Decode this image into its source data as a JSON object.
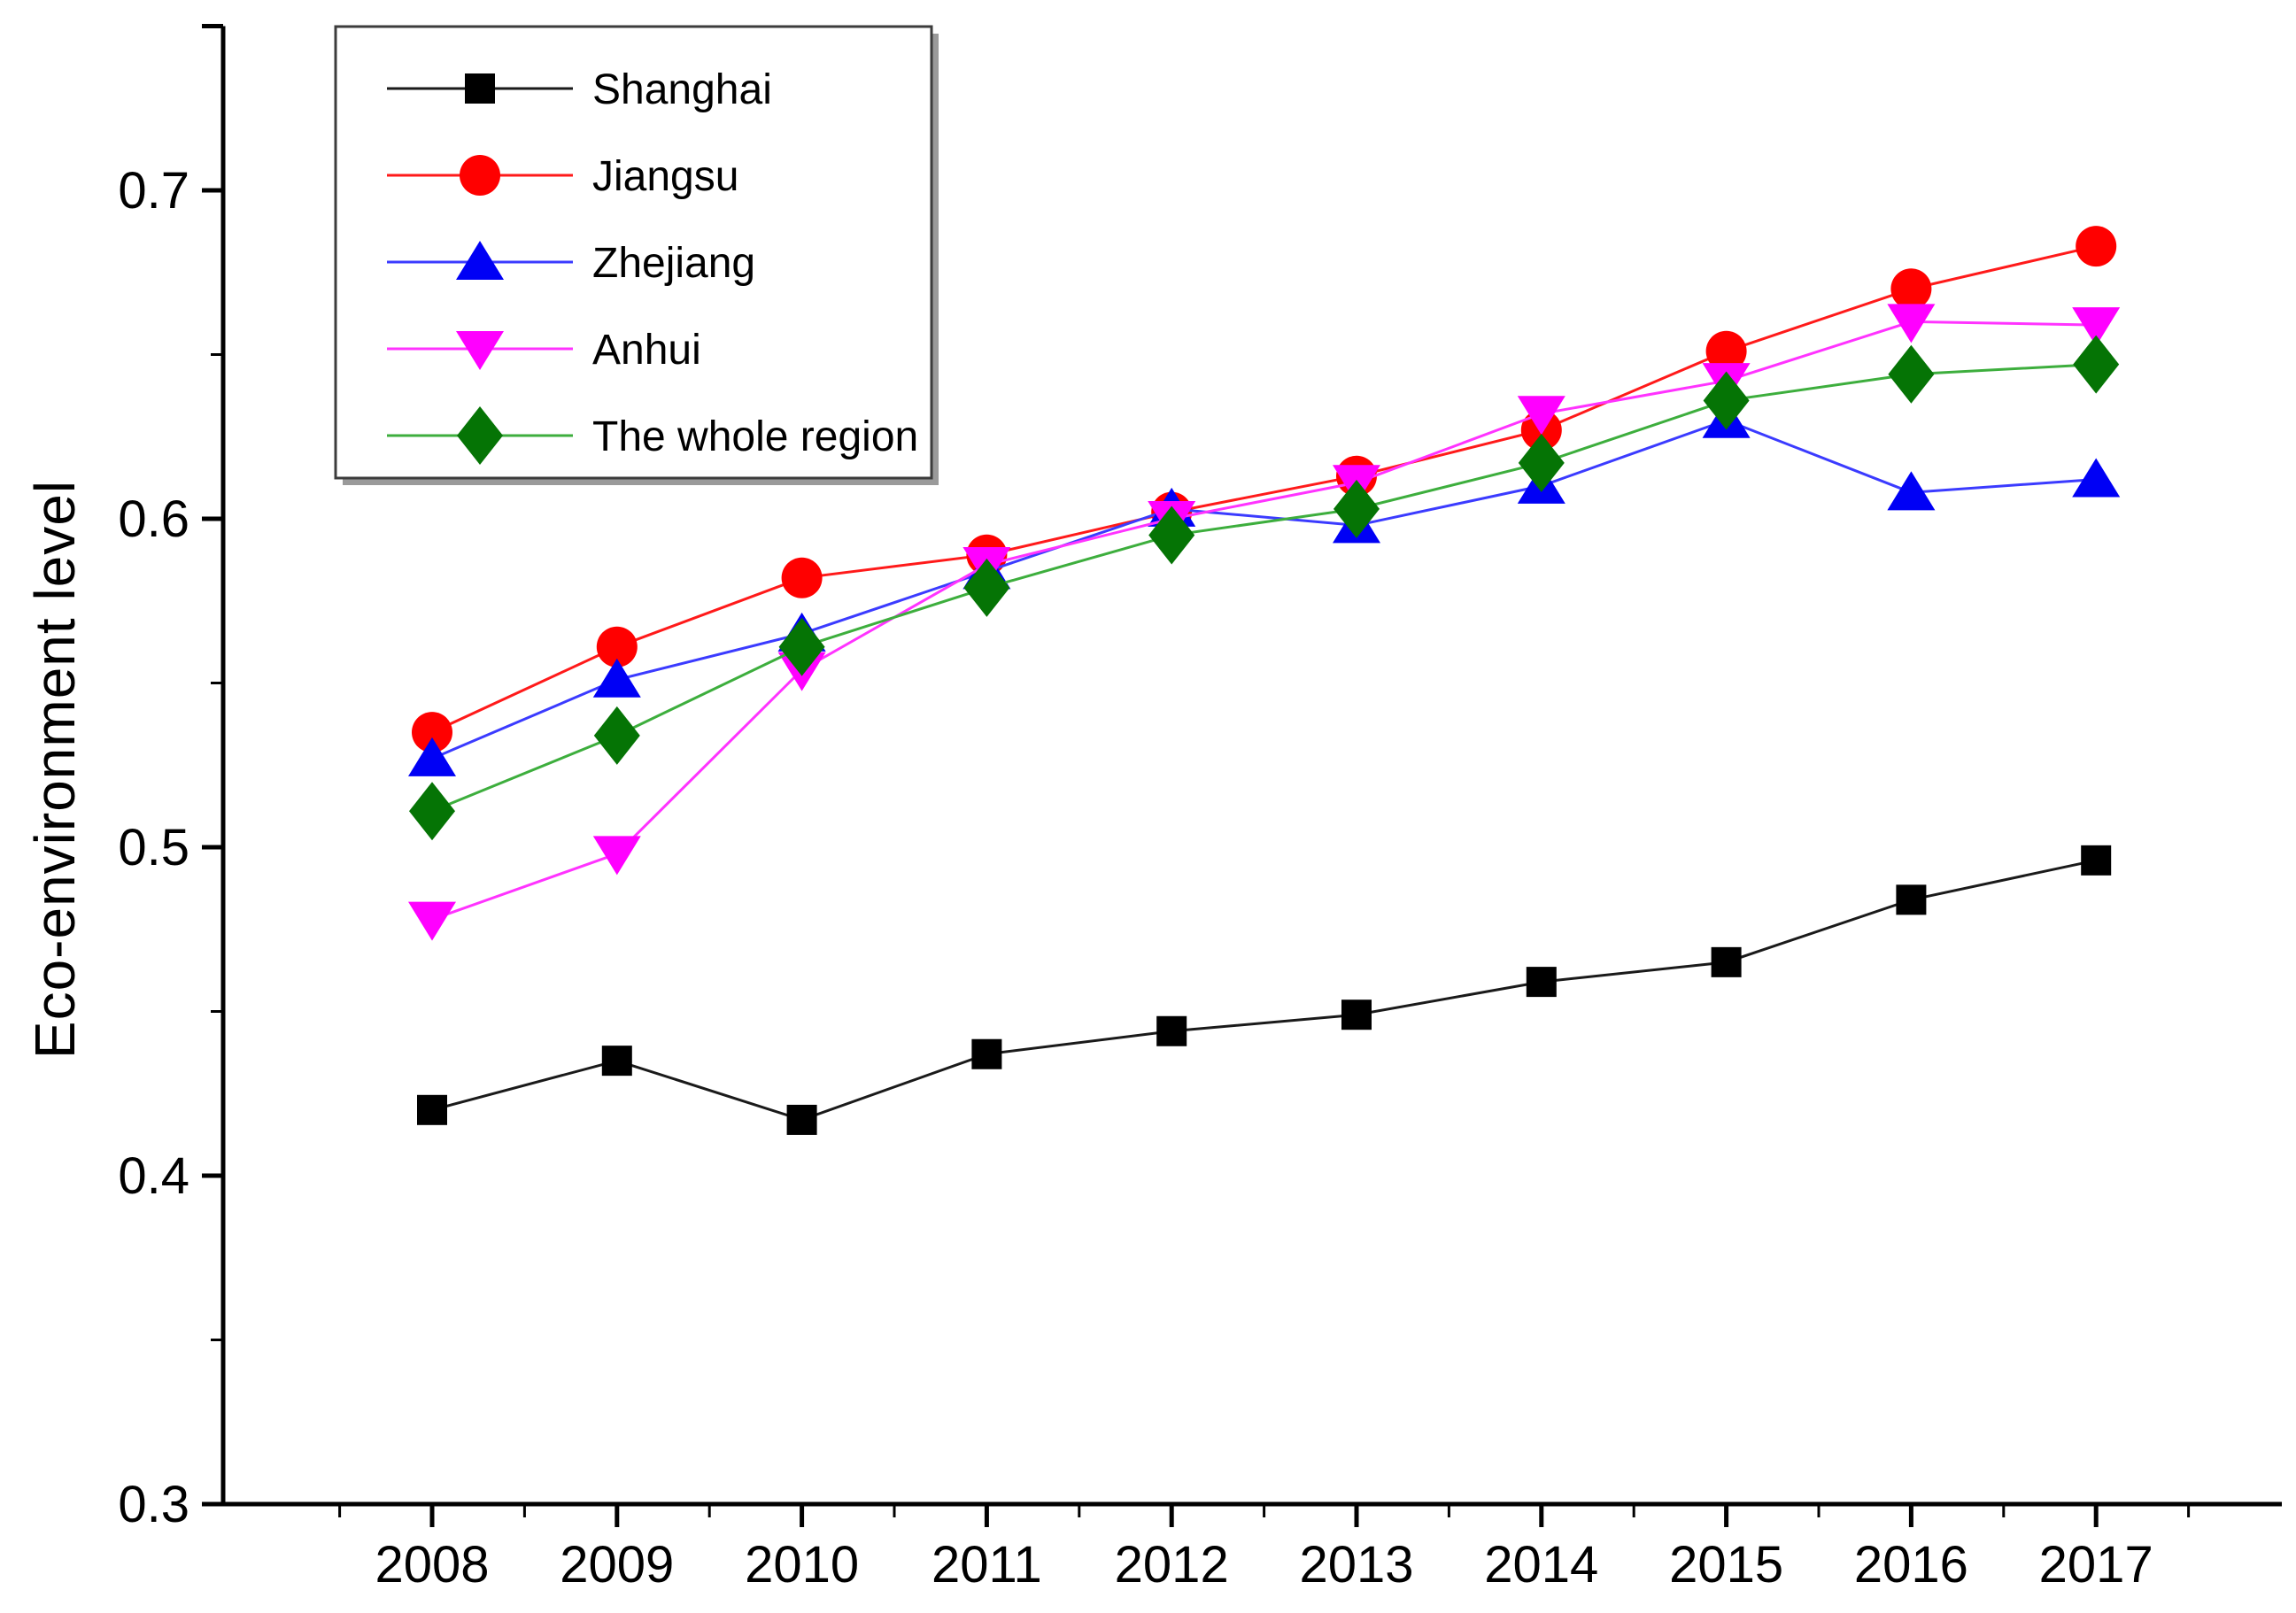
{
  "chart_data": {
    "type": "line",
    "title": "",
    "xlabel": "",
    "ylabel": "Eco-environment level",
    "x": [
      2008,
      2009,
      2010,
      2011,
      2012,
      2013,
      2014,
      2015,
      2016,
      2017
    ],
    "xtick_labels": [
      "2008",
      "2009",
      "2010",
      "2011",
      "2012",
      "2013",
      "2014",
      "2015",
      "2016",
      "2017"
    ],
    "ytick_labels": [
      "0.3",
      "0.4",
      "0.5",
      "0.6",
      "0.7"
    ],
    "yticks": [
      0.3,
      0.4,
      0.5,
      0.6,
      0.7
    ],
    "yticks_minor": [
      0.35,
      0.45,
      0.55,
      0.65,
      0.75
    ],
    "ylim": [
      0.3,
      0.75
    ],
    "grid": false,
    "legend_position": "top-left",
    "series": [
      {
        "name": "Shanghai",
        "marker": "square",
        "color": "#000000",
        "line_color": "#1a1a1a",
        "values": [
          0.42,
          0.435,
          0.417,
          0.437,
          0.444,
          0.449,
          0.459,
          0.465,
          0.484,
          0.496
        ]
      },
      {
        "name": "Jiangsu",
        "marker": "circle",
        "color": "#ff0000",
        "line_color": "#ff1a1a",
        "values": [
          0.535,
          0.561,
          0.582,
          0.589,
          0.602,
          0.613,
          0.627,
          0.651,
          0.67,
          0.683
        ]
      },
      {
        "name": "Zhejiang",
        "marker": "triangle-up",
        "color": "#0000f5",
        "line_color": "#3b3bff",
        "values": [
          0.527,
          0.551,
          0.565,
          0.584,
          0.603,
          0.598,
          0.61,
          0.63,
          0.608,
          0.612
        ]
      },
      {
        "name": "Anhui",
        "marker": "triangle-down",
        "color": "#ff00ff",
        "line_color": "#ff33ff",
        "values": [
          0.478,
          0.498,
          0.554,
          0.586,
          0.6,
          0.611,
          0.632,
          0.642,
          0.66,
          0.659
        ]
      },
      {
        "name": "The whole region",
        "marker": "diamond",
        "color": "#057405",
        "line_color": "#3dae3d",
        "values": [
          0.511,
          0.534,
          0.561,
          0.579,
          0.595,
          0.603,
          0.617,
          0.636,
          0.644,
          0.647
        ]
      }
    ]
  }
}
